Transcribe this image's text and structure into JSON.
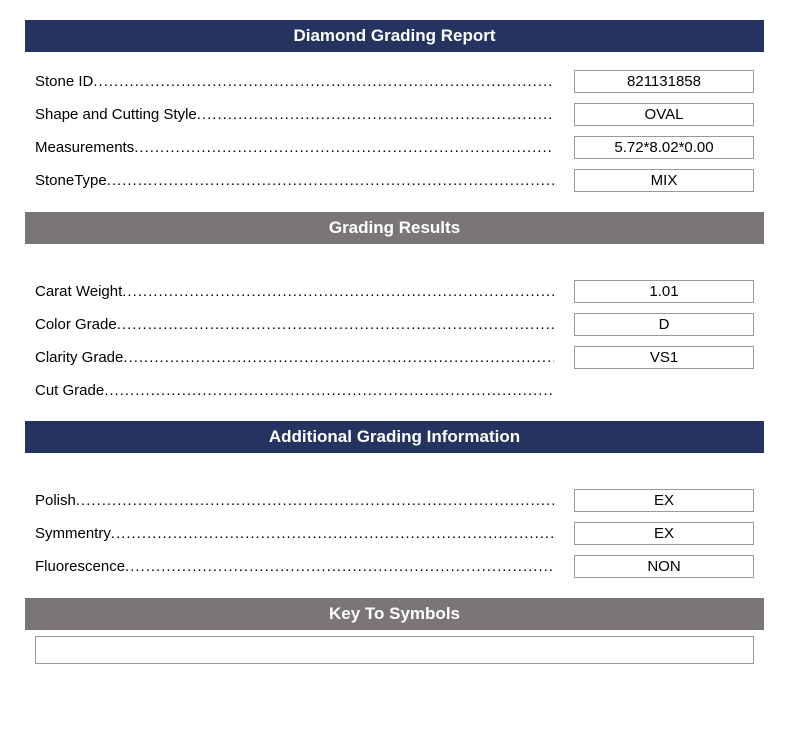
{
  "headers": {
    "report": "Diamond Grading Report",
    "grading": "Grading Results",
    "additional": "Additional Grading Information",
    "symbols": "Key To Symbols"
  },
  "identification": {
    "rows": [
      {
        "label": "Stone ID",
        "value": "821131858"
      },
      {
        "label": "Shape and Cutting Style",
        "value": "OVAL"
      },
      {
        "label": "Measurements",
        "value": "5.72*8.02*0.00"
      },
      {
        "label": "StoneType",
        "value": "MIX"
      }
    ]
  },
  "grading": {
    "rows": [
      {
        "label": "Carat Weight",
        "value": "1.01"
      },
      {
        "label": "Color Grade",
        "value": "D"
      },
      {
        "label": "Clarity Grade",
        "value": "VS1"
      },
      {
        "label": "Cut Grade",
        "value": null
      }
    ]
  },
  "additional": {
    "rows": [
      {
        "label": "Polish",
        "value": "EX"
      },
      {
        "label": "Symmentry",
        "value": "EX"
      },
      {
        "label": "Fluorescence",
        "value": "NON"
      }
    ]
  },
  "colors": {
    "navy": "#243360",
    "gray": "#7a7676",
    "border": "#999999",
    "text": "#000000",
    "bg": "#ffffff"
  }
}
